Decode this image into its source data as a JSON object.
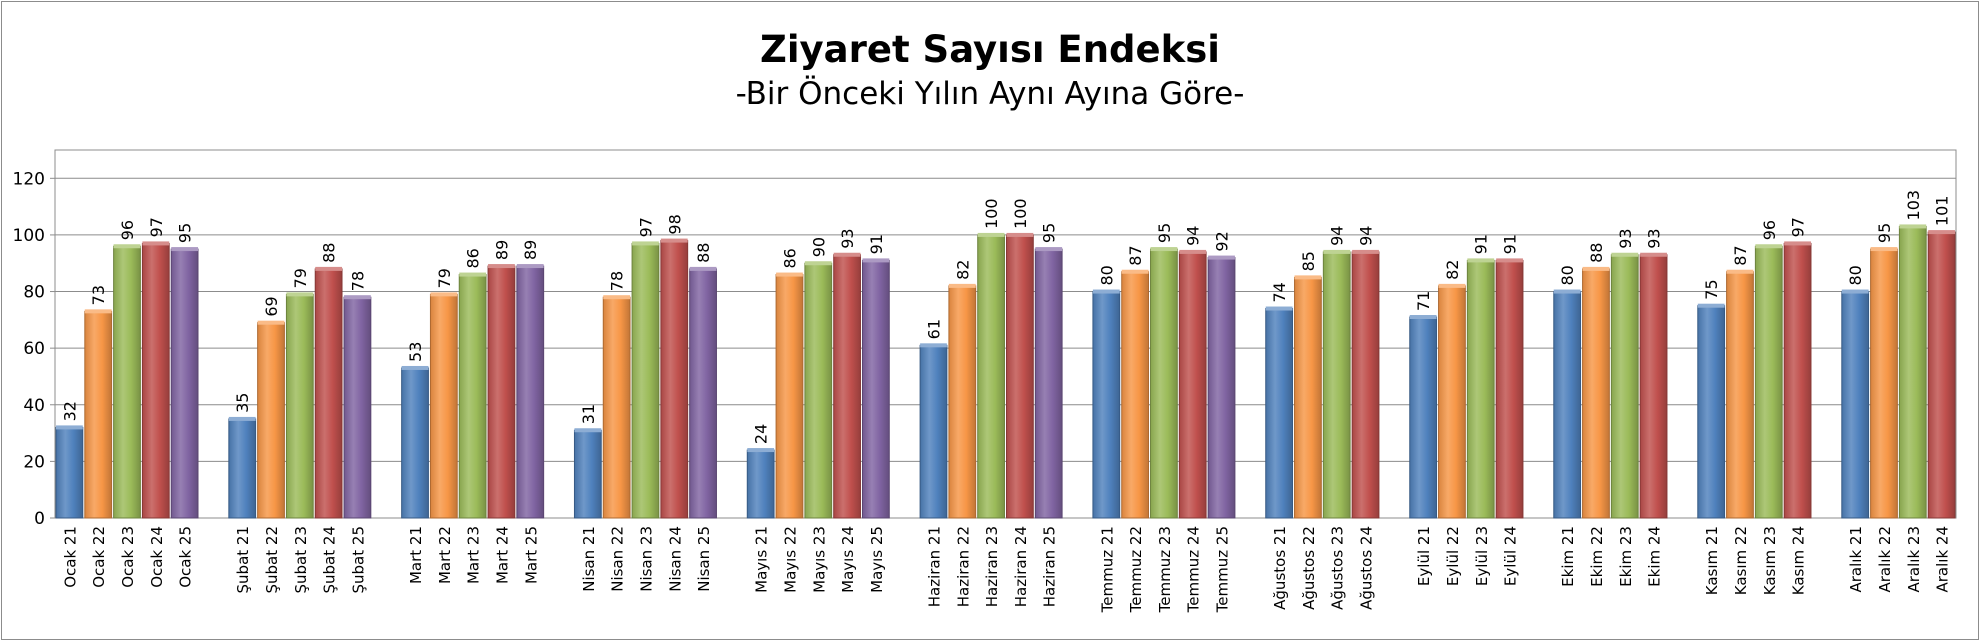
{
  "chart_data": {
    "type": "bar",
    "title": "Ziyaret Sayısı Endeksi",
    "subtitle": "-Bir Önceki Yılın Aynı Ayına Göre-",
    "xlabel": "",
    "ylabel": "",
    "ylim": [
      0,
      130
    ],
    "yticks": [
      0,
      20,
      40,
      60,
      80,
      100,
      120
    ],
    "grid": true,
    "legend": "none",
    "year_colors": {
      "21": "#4f81bd",
      "22": "#f79646",
      "23": "#9bbb59",
      "24": "#c0504d",
      "25": "#8064a2"
    },
    "groups": [
      {
        "month": "Ocak",
        "bars": [
          {
            "label": "Ocak 21",
            "year": "21",
            "value": 32
          },
          {
            "label": "Ocak 22",
            "year": "22",
            "value": 73
          },
          {
            "label": "Ocak 23",
            "year": "23",
            "value": 96
          },
          {
            "label": "Ocak 24",
            "year": "24",
            "value": 97
          },
          {
            "label": "Ocak 25",
            "year": "25",
            "value": 95
          }
        ]
      },
      {
        "month": "Şubat",
        "bars": [
          {
            "label": "Şubat 21",
            "year": "21",
            "value": 35
          },
          {
            "label": "Şubat 22",
            "year": "22",
            "value": 69
          },
          {
            "label": "Şubat 23",
            "year": "23",
            "value": 79
          },
          {
            "label": "Şubat 24",
            "year": "24",
            "value": 88
          },
          {
            "label": "Şubat 25",
            "year": "25",
            "value": 78
          }
        ]
      },
      {
        "month": "Mart",
        "bars": [
          {
            "label": "Mart 21",
            "year": "21",
            "value": 53
          },
          {
            "label": "Mart 22",
            "year": "22",
            "value": 79
          },
          {
            "label": "Mart 23",
            "year": "23",
            "value": 86
          },
          {
            "label": "Mart 24",
            "year": "24",
            "value": 89
          },
          {
            "label": "Mart 25",
            "year": "25",
            "value": 89
          }
        ]
      },
      {
        "month": "Nisan",
        "bars": [
          {
            "label": "Nisan 21",
            "year": "21",
            "value": 31
          },
          {
            "label": "Nisan 22",
            "year": "22",
            "value": 78
          },
          {
            "label": "Nisan 23",
            "year": "23",
            "value": 97
          },
          {
            "label": "Nisan 24",
            "year": "24",
            "value": 98
          },
          {
            "label": "Nisan 25",
            "year": "25",
            "value": 88
          }
        ]
      },
      {
        "month": "Mayıs",
        "bars": [
          {
            "label": "Mayıs 21",
            "year": "21",
            "value": 24
          },
          {
            "label": "Mayıs 22",
            "year": "22",
            "value": 86
          },
          {
            "label": "Mayıs 23",
            "year": "23",
            "value": 90
          },
          {
            "label": "Mayıs 24",
            "year": "24",
            "value": 93
          },
          {
            "label": "Mayıs 25",
            "year": "25",
            "value": 91
          }
        ]
      },
      {
        "month": "Haziran",
        "bars": [
          {
            "label": "Haziran 21",
            "year": "21",
            "value": 61
          },
          {
            "label": "Haziran 22",
            "year": "22",
            "value": 82
          },
          {
            "label": "Haziran 23",
            "year": "23",
            "value": 100
          },
          {
            "label": "Haziran 24",
            "year": "24",
            "value": 100
          },
          {
            "label": "Haziran 25",
            "year": "25",
            "value": 95
          }
        ]
      },
      {
        "month": "Temmuz",
        "bars": [
          {
            "label": "Temmuz 21",
            "year": "21",
            "value": 80
          },
          {
            "label": "Temmuz 22",
            "year": "22",
            "value": 87
          },
          {
            "label": "Temmuz 23",
            "year": "23",
            "value": 95
          },
          {
            "label": "Temmuz 24",
            "year": "24",
            "value": 94
          },
          {
            "label": "Temmuz 25",
            "year": "25",
            "value": 92
          }
        ]
      },
      {
        "month": "Ağustos",
        "bars": [
          {
            "label": "Ağustos 21",
            "year": "21",
            "value": 74
          },
          {
            "label": "Ağustos 22",
            "year": "22",
            "value": 85
          },
          {
            "label": "Ağustos 23",
            "year": "23",
            "value": 94
          },
          {
            "label": "Ağustos 24",
            "year": "24",
            "value": 94
          }
        ]
      },
      {
        "month": "Eylül",
        "bars": [
          {
            "label": "Eylül 21",
            "year": "21",
            "value": 71
          },
          {
            "label": "Eylül 22",
            "year": "22",
            "value": 82
          },
          {
            "label": "Eylül 23",
            "year": "23",
            "value": 91
          },
          {
            "label": "Eylül 24",
            "year": "24",
            "value": 91
          }
        ]
      },
      {
        "month": "Ekim",
        "bars": [
          {
            "label": "Ekim 21",
            "year": "21",
            "value": 80
          },
          {
            "label": "Ekim 22",
            "year": "22",
            "value": 88
          },
          {
            "label": "Ekim 23",
            "year": "23",
            "value": 93
          },
          {
            "label": "Ekim 24",
            "year": "24",
            "value": 93
          }
        ]
      },
      {
        "month": "Kasım",
        "bars": [
          {
            "label": "Kasım 21",
            "year": "21",
            "value": 75
          },
          {
            "label": "Kasım 22",
            "year": "22",
            "value": 87
          },
          {
            "label": "Kasım 23",
            "year": "23",
            "value": 96
          },
          {
            "label": "Kasım 24",
            "year": "24",
            "value": 97
          }
        ]
      },
      {
        "month": "Aralık",
        "bars": [
          {
            "label": "Aralık 21",
            "year": "21",
            "value": 80
          },
          {
            "label": "Aralık 22",
            "year": "22",
            "value": 95
          },
          {
            "label": "Aralık 23",
            "year": "23",
            "value": 103
          },
          {
            "label": "Aralık 24",
            "year": "24",
            "value": 101
          }
        ]
      }
    ]
  }
}
